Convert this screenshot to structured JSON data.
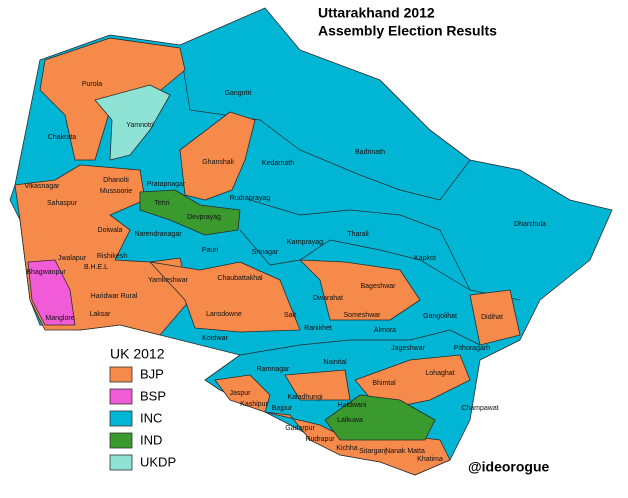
{
  "title": {
    "line1": "Uttarakhand 2012",
    "line2": "Assembly Election Results"
  },
  "legend": {
    "title": "UK 2012",
    "items": [
      {
        "name": "BJP",
        "color": "#f58a4b"
      },
      {
        "name": "BSP",
        "color": "#f25bd7"
      },
      {
        "name": "INC",
        "color": "#00b6d4"
      },
      {
        "name": "IND",
        "color": "#3a9a2e"
      },
      {
        "name": "UKDP",
        "color": "#8fe3d4"
      }
    ]
  },
  "constituencies": [
    "Purola",
    "Gangotri",
    "Yamnotri",
    "Chakrata",
    "Badrinath",
    "Kedarnath",
    "Ghanshali",
    "Dhanolti",
    "Mussoorie",
    "Vikasnagar",
    "Sahaspur",
    "Pratapnagar",
    "Tehri",
    "Devprayag",
    "Rudraprayag",
    "Tharali",
    "Dharchula",
    "Doiwala",
    "Narendranagar",
    "Pauri",
    "Srinagar",
    "Karnprayag",
    "Kapkot",
    "Rishikesh",
    "B.H.E.L",
    "Jwalapur",
    "Bhagwanpur",
    "Haridwar Rural",
    "Laksar",
    "Manglore",
    "Yamkeshwar",
    "Chaubattakhal",
    "Dwarahat",
    "Bageshwar",
    "Someshwar",
    "Lansdowne",
    "Salt",
    "Ranikhet",
    "Almora",
    "Gangolihat",
    "Didihat",
    "Kotdwar",
    "Jageshwar",
    "Pithoragarh",
    "Nainital",
    "Ramnagar",
    "Bhimtal",
    "Lohaghat",
    "Kaladhungi",
    "Jaspur",
    "Kashipur",
    "Bajpur",
    "Haldwani",
    "Champawat",
    "Lalkuwa",
    "Gadarpur",
    "Rudrapur",
    "Kichha",
    "Sitarganj",
    "Nanak Matta",
    "Khatima"
  ],
  "credit": "@ideorogue"
}
